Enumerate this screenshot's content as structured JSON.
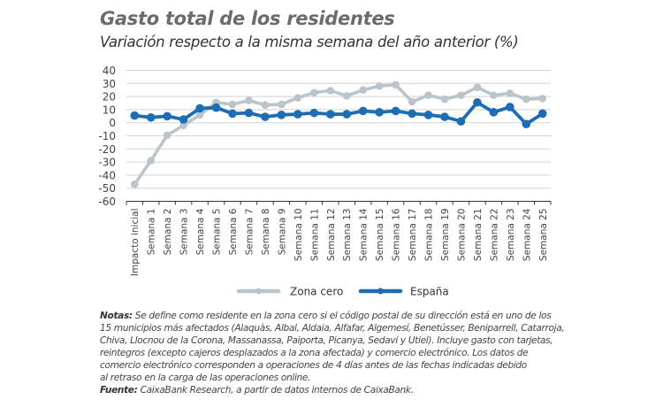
{
  "header": {
    "title": "Gasto total de los residentes",
    "subtitle": "Variación respecto a la misma semana del año anterior (%)"
  },
  "chart_data": {
    "type": "line",
    "title": "Gasto total de los residentes",
    "subtitle": "Variación respecto a la misma semana del año anterior (%)",
    "xlabel": "",
    "ylabel": "",
    "ylim": [
      -60,
      40
    ],
    "yticks": [
      40,
      30,
      20,
      10,
      0,
      -10,
      -20,
      -30,
      -40,
      -50,
      -60
    ],
    "grid": true,
    "legend_position": "bottom",
    "categories": [
      "Impacto inicial",
      "Semana 1",
      "Semana 2",
      "Semana 3",
      "Semana 4",
      "Semana 5",
      "Semana 6",
      "Semana 7",
      "Semana 8",
      "Semana 9",
      "Semana 10",
      "Semana 11",
      "Semana 12",
      "Semana 13",
      "Semana 14",
      "Semana 15",
      "Semana 16",
      "Semana 17",
      "Semana 18",
      "Semana 19",
      "Semana 20",
      "Semana 21",
      "Semana 22",
      "Semana 23",
      "Semana 24",
      "Semana 25"
    ],
    "series": [
      {
        "name": "Zona cero",
        "color": "#b9c4cb",
        "values": [
          -47,
          -29,
          -9.5,
          -2,
          6,
          15.5,
          14,
          17,
          13.5,
          14,
          19,
          23,
          24.5,
          20.5,
          25,
          28,
          29,
          16,
          21,
          18,
          21,
          27,
          21,
          22.5,
          18,
          18.5
        ]
      },
      {
        "name": "España",
        "color": "#1c6db3",
        "values": [
          5.5,
          4,
          5,
          2.5,
          11,
          11.5,
          7,
          7.5,
          4.5,
          6,
          6.5,
          7.5,
          6.5,
          6.5,
          9,
          8,
          9,
          7,
          6,
          4.5,
          1,
          15.5,
          8,
          12,
          -1,
          7
        ]
      }
    ]
  },
  "notes": {
    "notes_label": "Notas:",
    "notes_lines": [
      "Se define como residente en la zona cero si el código postal de su dirección está en uno de los",
      "15 municipios más afectados (Alaquàs, Albal, Aldaia, Alfafar, Algemesí, Benetússer, Beniparrell, Catarroja,",
      "Chiva, Llocnou de la Corona, Massanassa, Paiporta, Picanya, Sedaví y Utiel). Incluye gasto con tarjetas,",
      "reintegros (excepto cajeros desplazados a la zona afectada) y comercio electrónico. Los datos de",
      "comercio electrónico corresponden a operaciones de 4 días antes de las fechas indicadas debido",
      "al retraso en la carga de las operaciones online."
    ],
    "source_label": "Fuente:",
    "source_text": "CaixaBank Research, a partir de datos internos de CaixaBank."
  }
}
